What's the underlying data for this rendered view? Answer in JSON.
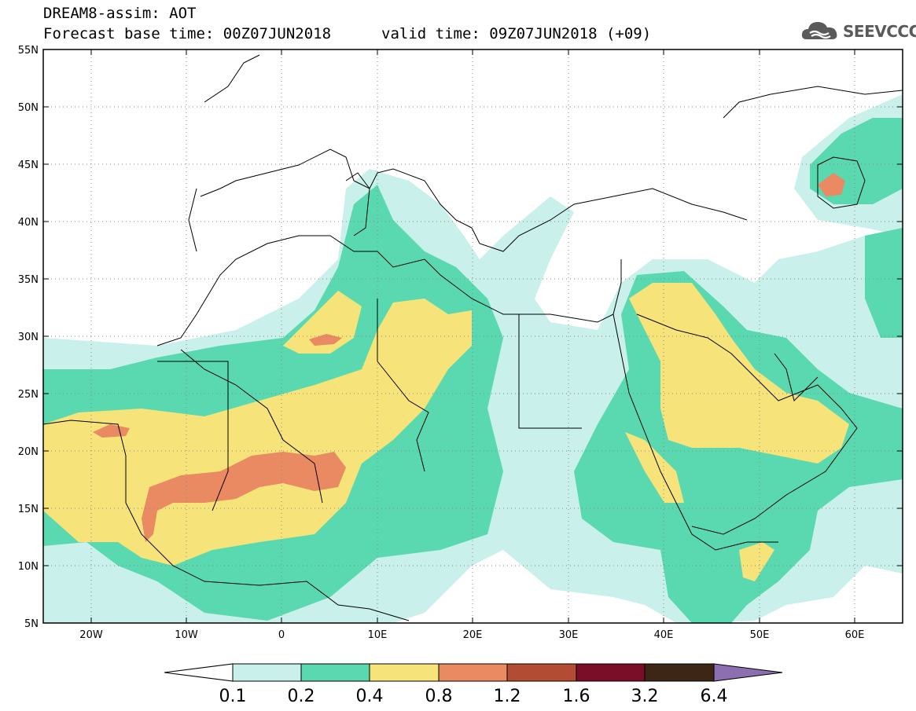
{
  "header": {
    "model_line": "DREAM8-assim: AOT",
    "base_time_line": "Forecast base time: 00Z07JUN2018",
    "valid_time_line": "valid time: 09Z07JUN2018 (+09)",
    "logo_text": "SEEVCCC",
    "logo_icon": "cloud-icon"
  },
  "map": {
    "lat_labels": [
      "55N",
      "50N",
      "45N",
      "40N",
      "35N",
      "30N",
      "25N",
      "20N",
      "15N",
      "10N",
      "5N"
    ],
    "lon_labels": [
      "20W",
      "10W",
      "0",
      "10E",
      "20E",
      "30E",
      "40E",
      "50E",
      "60E"
    ],
    "lat_range": [
      5,
      55
    ],
    "lon_range": [
      -25,
      65
    ],
    "grid": "dotted"
  },
  "colorbar": {
    "labels": [
      "0.1",
      "0.2",
      "0.4",
      "0.8",
      "1.2",
      "1.6",
      "3.2",
      "6.4"
    ],
    "colors": [
      "#ffffff",
      "#c9f0eb",
      "#5ad9b0",
      "#f6e37a",
      "#e98a62",
      "#b24d34",
      "#7a0e28",
      "#3d2616",
      "#8c6fb0"
    ]
  }
}
